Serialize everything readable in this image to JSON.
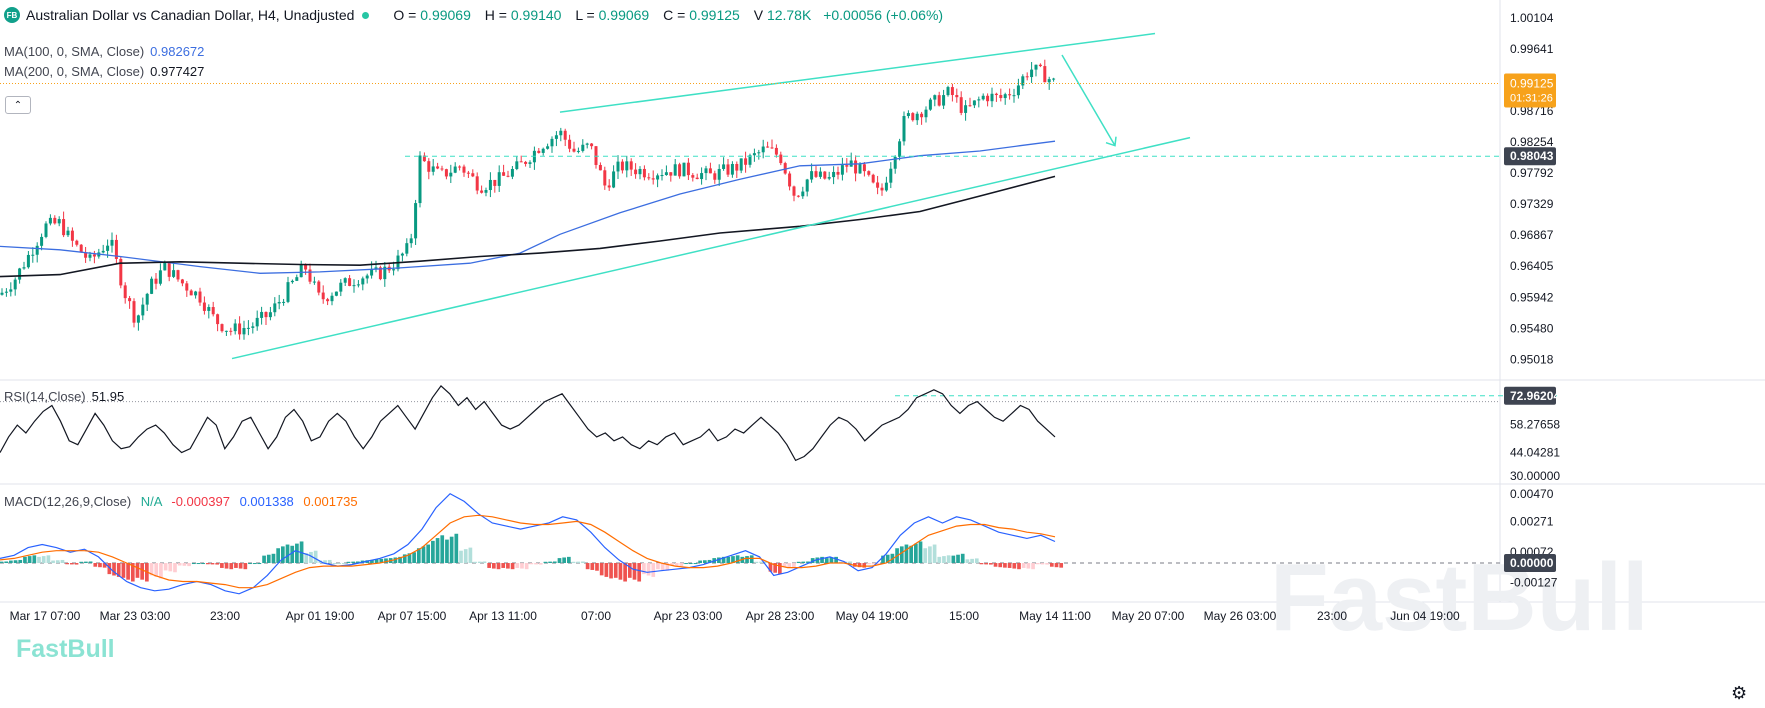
{
  "header": {
    "logo": "FB",
    "title": "Australian Dollar vs Canadian Dollar, H4, Unadjusted",
    "open_label": "O",
    "open": "0.99069",
    "high_label": "H",
    "high": "0.99140",
    "low_label": "L",
    "low": "0.99069",
    "close_label": "C",
    "close": "0.99125",
    "volume_label": "V",
    "volume": "12.78K",
    "change": "+0.00056 (+0.06%)"
  },
  "indicators": {
    "ma100": {
      "label": "MA(100, 0, SMA, Close)",
      "value": "0.982672",
      "color": "#3c6ee0"
    },
    "ma200": {
      "label": "MA(200, 0, SMA, Close)",
      "value": "0.977427",
      "color": "#131722"
    },
    "rsi": {
      "label": "RSI(14,Close)",
      "value": "51.95"
    },
    "macd": {
      "label": "MACD(12,26,9,Close)",
      "hist": "N/A",
      "v1": "-0.000397",
      "v2": "0.001338",
      "v3": "0.001735"
    }
  },
  "watermark": "FastBull",
  "watermark_small": "FastBull",
  "icons": {
    "collapse": "chevron-up-icon",
    "settings": "gear-icon"
  },
  "colors": {
    "up": "#089981",
    "down": "#f23645",
    "trendline": "#3fe0c5",
    "ma100": "#3c6ee0",
    "ma200": "#131722",
    "price_tag": "#f7a21b",
    "macd_line": "#2962ff",
    "signal_line": "#ff6d00"
  },
  "chart_data": [
    {
      "type": "candlestick",
      "symbol": "AUDCAD",
      "timeframe": "H4",
      "y_ticks": [
        "1.00104",
        "0.99641",
        "0.98716",
        "0.98254",
        "0.97792",
        "0.97329",
        "0.96867",
        "0.96405",
        "0.95942",
        "0.95480",
        "0.95018"
      ],
      "ylim": [
        0.948,
        1.0025
      ],
      "price_tag": {
        "value": "0.99125",
        "countdown": "01:31:26"
      },
      "level_tag": {
        "value": "0.98043"
      },
      "x_ticks": [
        "Mar 17 07:00",
        "Mar 23 03:00",
        "23:00",
        "Apr 01 19:00",
        "Apr 07 15:00",
        "Apr 13 11:00",
        "07:00",
        "Apr 23 03:00",
        "Apr 28 23:00",
        "May 04 19:00",
        "15:00",
        "May 14 11:00",
        "May 20 07:00",
        "May 26 03:00",
        "23:00",
        "Jun 04 19:00"
      ],
      "close_path": [
        [
          0,
          0.9598
        ],
        [
          15,
          0.9622
        ],
        [
          30,
          0.966
        ],
        [
          45,
          0.97
        ],
        [
          60,
          0.9705
        ],
        [
          70,
          0.968
        ],
        [
          90,
          0.9648
        ],
        [
          110,
          0.968
        ],
        [
          125,
          0.96
        ],
        [
          136,
          0.956
        ],
        [
          150,
          0.961
        ],
        [
          165,
          0.964
        ],
        [
          180,
          0.9618
        ],
        [
          200,
          0.9595
        ],
        [
          215,
          0.956
        ],
        [
          230,
          0.9545
        ],
        [
          250,
          0.955
        ],
        [
          270,
          0.957
        ],
        [
          290,
          0.961
        ],
        [
          305,
          0.964
        ],
        [
          320,
          0.959
        ],
        [
          340,
          0.961
        ],
        [
          360,
          0.9625
        ],
        [
          380,
          0.963
        ],
        [
          395,
          0.9645
        ],
        [
          410,
          0.967
        ],
        [
          420,
          0.98
        ],
        [
          440,
          0.9775
        ],
        [
          460,
          0.979
        ],
        [
          480,
          0.976
        ],
        [
          500,
          0.977
        ],
        [
          520,
          0.979
        ],
        [
          540,
          0.982
        ],
        [
          560,
          0.984
        ],
        [
          575,
          0.981
        ],
        [
          590,
          0.982
        ],
        [
          605,
          0.976
        ],
        [
          620,
          0.979
        ],
        [
          650,
          0.978
        ],
        [
          680,
          0.9785
        ],
        [
          710,
          0.9775
        ],
        [
          740,
          0.979
        ],
        [
          765,
          0.9815
        ],
        [
          780,
          0.9805
        ],
        [
          795,
          0.9745
        ],
        [
          810,
          0.9775
        ],
        [
          830,
          0.977
        ],
        [
          850,
          0.9795
        ],
        [
          865,
          0.9775
        ],
        [
          880,
          0.9745
        ],
        [
          890,
          0.979
        ],
        [
          905,
          0.986
        ],
        [
          930,
          0.988
        ],
        [
          950,
          0.99
        ],
        [
          965,
          0.987
        ],
        [
          985,
          0.9895
        ],
        [
          1000,
          0.989
        ],
        [
          1015,
          0.9905
        ],
        [
          1030,
          0.9935
        ],
        [
          1045,
          0.9925
        ],
        [
          1055,
          0.99125
        ]
      ],
      "ma100_path": [
        [
          0,
          0.967
        ],
        [
          60,
          0.9665
        ],
        [
          120,
          0.9655
        ],
        [
          200,
          0.964
        ],
        [
          260,
          0.963
        ],
        [
          320,
          0.9632
        ],
        [
          400,
          0.9638
        ],
        [
          470,
          0.9645
        ],
        [
          520,
          0.966
        ],
        [
          560,
          0.9688
        ],
        [
          620,
          0.972
        ],
        [
          680,
          0.9748
        ],
        [
          740,
          0.977
        ],
        [
          800,
          0.979
        ],
        [
          860,
          0.9793
        ],
        [
          920,
          0.9805
        ],
        [
          980,
          0.9812
        ],
        [
          1020,
          0.982
        ],
        [
          1055,
          0.98267
        ]
      ],
      "ma200_path": [
        [
          0,
          0.9625
        ],
        [
          60,
          0.9628
        ],
        [
          120,
          0.9645
        ],
        [
          180,
          0.9647
        ],
        [
          240,
          0.9645
        ],
        [
          300,
          0.9643
        ],
        [
          360,
          0.9642
        ],
        [
          420,
          0.9648
        ],
        [
          480,
          0.9655
        ],
        [
          540,
          0.966
        ],
        [
          600,
          0.9667
        ],
        [
          660,
          0.9678
        ],
        [
          720,
          0.969
        ],
        [
          800,
          0.97
        ],
        [
          860,
          0.971
        ],
        [
          920,
          0.9722
        ],
        [
          980,
          0.9745
        ],
        [
          1055,
          0.97743
        ]
      ],
      "trendlines": [
        {
          "from": [
            232,
            0.9503
          ],
          "to": [
            1190,
            0.9832
          ]
        },
        {
          "from": [
            560,
            0.987
          ],
          "to": [
            1155,
            0.9987
          ]
        }
      ],
      "horizontal_level": {
        "value": 0.98043,
        "from_x": 405,
        "to_x": 1500
      },
      "arrow": {
        "from": [
          1062,
          0.9955
        ],
        "to": [
          1115,
          0.982
        ]
      }
    },
    {
      "type": "line",
      "name": "RSI(14,Close)",
      "y_ticks": [
        "72.96204",
        "58.27658",
        "44.04281",
        "30.00000"
      ],
      "ylim": [
        29,
        80
      ],
      "overbought_level": 72.96204,
      "values": [
        44,
        52,
        58,
        54,
        60,
        65,
        68,
        60,
        50,
        48,
        56,
        64,
        58,
        50,
        46,
        47,
        52,
        56,
        58,
        54,
        48,
        44,
        46,
        54,
        62,
        58,
        46,
        52,
        60,
        62,
        54,
        46,
        52,
        62,
        66,
        60,
        50,
        52,
        60,
        64,
        60,
        52,
        46,
        52,
        60,
        64,
        68,
        62,
        56,
        64,
        72,
        78,
        74,
        68,
        72,
        66,
        70,
        64,
        58,
        56,
        58,
        62,
        66,
        70,
        72,
        74,
        68,
        62,
        56,
        52,
        54,
        50,
        52,
        48,
        46,
        50,
        48,
        52,
        54,
        48,
        50,
        52,
        56,
        50,
        52,
        56,
        54,
        58,
        62,
        58,
        54,
        48,
        40,
        42,
        46,
        52,
        58,
        62,
        60,
        56,
        50,
        54,
        58,
        60,
        62,
        66,
        72,
        74,
        76,
        74,
        68,
        64,
        68,
        70,
        66,
        62,
        60,
        64,
        68,
        66,
        60,
        56,
        52
      ]
    },
    {
      "type": "line",
      "name": "MACD(12,26,9,Close)",
      "y_ticks": [
        "0.00470",
        "0.00271",
        "0.00072",
        "0.00000",
        "-0.00127"
      ],
      "ylim": [
        -0.0024,
        0.005
      ],
      "zero_level": 0.0,
      "macd": [
        0.0003,
        0.0005,
        0.001,
        0.0012,
        0.001,
        0.0007,
        0.0009,
        0.0004,
        -0.0005,
        -0.0012,
        -0.0016,
        -0.0018,
        -0.0017,
        -0.0014,
        -0.0012,
        -0.0014,
        -0.0018,
        -0.002,
        -0.0016,
        -0.0008,
        0.0002,
        0.0008,
        0.0005,
        0.0,
        -0.0002,
        -0.0001,
        0.0001,
        0.0003,
        0.0006,
        0.0012,
        0.0022,
        0.0036,
        0.0045,
        0.004,
        0.0032,
        0.0026,
        0.0024,
        0.0022,
        0.0024,
        0.0026,
        0.003,
        0.0028,
        0.002,
        0.001,
        0.0002,
        -0.0004,
        -0.0006,
        -0.0005,
        -0.0004,
        -0.0003,
        -0.0001,
        0.0002,
        0.0005,
        0.0008,
        0.0004,
        -0.0008,
        -0.0006,
        -0.0002,
        0.0002,
        0.0004,
        0.0001,
        -0.0005,
        -0.0003,
        0.0006,
        0.0018,
        0.0026,
        0.003,
        0.0026,
        0.003,
        0.0028,
        0.0024,
        0.002,
        0.0018,
        0.0016,
        0.0018,
        0.0014
      ],
      "signal": [
        0.0002,
        0.0003,
        0.0005,
        0.0007,
        0.0008,
        0.0008,
        0.0008,
        0.0007,
        0.0004,
        0.0,
        -0.0004,
        -0.0008,
        -0.0011,
        -0.0012,
        -0.0012,
        -0.0013,
        -0.0014,
        -0.0016,
        -0.0016,
        -0.0014,
        -0.001,
        -0.0006,
        -0.0003,
        -0.0002,
        -0.0002,
        -0.0002,
        -0.0001,
        0.0,
        0.0002,
        0.0005,
        0.001,
        0.0018,
        0.0026,
        0.003,
        0.0031,
        0.003,
        0.0028,
        0.0026,
        0.0025,
        0.0025,
        0.0026,
        0.0027,
        0.0025,
        0.002,
        0.0014,
        0.0008,
        0.0003,
        0.0,
        -0.0002,
        -0.0003,
        -0.0003,
        -0.0002,
        0.0,
        0.0003,
        0.0003,
        -0.0001,
        -0.0003,
        -0.0003,
        -0.0002,
        0.0,
        0.0,
        -0.0002,
        -0.0002,
        0.0,
        0.0006,
        0.0012,
        0.0018,
        0.0021,
        0.0024,
        0.0025,
        0.0025,
        0.0023,
        0.0022,
        0.002,
        0.0019,
        0.0017
      ]
    }
  ]
}
